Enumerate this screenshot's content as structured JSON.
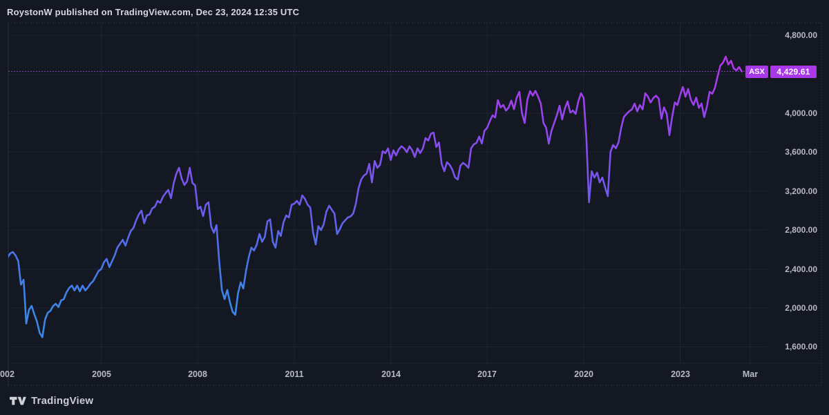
{
  "header": {
    "text": "RoystonW published on TradingView.com, Dec 23, 2024 12:35 UTC"
  },
  "footer": {
    "brand": "TradingView",
    "logo_icon": "tradingview-logo"
  },
  "price_label": {
    "symbol": "ASX",
    "value": "4,429.61",
    "numeric": 4429.61,
    "bg_color": "#a838e8",
    "text_color": "#ffffff"
  },
  "price_scale": {
    "labels": [
      "4,800.00",
      "4,000.00",
      "3,600.00",
      "3,200.00",
      "2,800.00",
      "2,400.00",
      "2,000.00",
      "1,600.00"
    ],
    "values": [
      4800,
      4000,
      3600,
      3200,
      2800,
      2400,
      2000,
      1600
    ]
  },
  "time_scale": {
    "ticks": [
      {
        "label": "2002",
        "year": 2002
      },
      {
        "label": "2005",
        "year": 2005
      },
      {
        "label": "2008",
        "year": 2008
      },
      {
        "label": "2011",
        "year": 2011
      },
      {
        "label": "2014",
        "year": 2014
      },
      {
        "label": "2017",
        "year": 2017
      },
      {
        "label": "2020",
        "year": 2020
      },
      {
        "label": "2023",
        "year": 2023
      },
      {
        "label": "Mar",
        "year": 2025.17
      }
    ]
  },
  "colors": {
    "background": "#141823",
    "grid": "#1f2431",
    "frame_dash": "#2b303c",
    "axis_text": "#b6bac3",
    "header_text": "#d5d8de",
    "price_line_dotted": "#9a4ce0",
    "label_bg": "#a838e8",
    "line_gradient_top": "#c22de9",
    "line_gradient_mid": "#6b5cea",
    "line_gradient_bottom": "#3b87e8"
  },
  "chart_data": {
    "type": "line",
    "symbol": "ASX",
    "frequency": "monthly",
    "x_start": "2002-01",
    "x_end": "2024-12",
    "last_value": 4429.61,
    "ylim": [
      1412,
      4920
    ],
    "y_grid_values": [
      4800,
      4400,
      4000,
      3600,
      3200,
      2800,
      2400,
      2000,
      1600
    ],
    "x_tick_years": [
      2002,
      2005,
      2008,
      2011,
      2014,
      2017,
      2020,
      2023,
      2025.17
    ],
    "price_line_value": 4429.61,
    "values": [
      2510,
      2518,
      2560,
      2575,
      2540,
      2482,
      2240,
      2290,
      1840,
      1980,
      2021,
      1935,
      1860,
      1745,
      1700,
      1880,
      1951,
      1970,
      2020,
      2043,
      2010,
      2078,
      2090,
      2160,
      2206,
      2230,
      2180,
      2230,
      2170,
      2230,
      2180,
      2210,
      2250,
      2277,
      2330,
      2380,
      2400,
      2470,
      2504,
      2419,
      2480,
      2540,
      2620,
      2660,
      2700,
      2640,
      2720,
      2790,
      2823,
      2900,
      2960,
      3000,
      2870,
      2951,
      2960,
      3022,
      3040,
      3100,
      3080,
      3142,
      3180,
      3213,
      3128,
      3280,
      3380,
      3440,
      3330,
      3263,
      3300,
      3440,
      3284,
      3260,
      3015,
      3040,
      2944,
      3060,
      3085,
      2837,
      2773,
      2850,
      2480,
      2182,
      2090,
      2185,
      2060,
      1960,
      1930,
      2150,
      2263,
      2200,
      2380,
      2520,
      2620,
      2590,
      2650,
      2760,
      2680,
      2730,
      2890,
      2910,
      2680,
      2620,
      2790,
      2740,
      2880,
      2950,
      2930,
      3060,
      3071,
      3100,
      3060,
      3156,
      3120,
      3060,
      3030,
      2780,
      2653,
      2840,
      2800,
      2860,
      2990,
      3050,
      3010,
      2970,
      2759,
      2810,
      2870,
      2900,
      2930,
      2940,
      2970,
      3070,
      3230,
      3319,
      3360,
      3380,
      3480,
      3290,
      3510,
      3440,
      3470,
      3610,
      3590,
      3640,
      3520,
      3620,
      3567,
      3630,
      3660,
      3640,
      3600,
      3660,
      3620,
      3550,
      3640,
      3590,
      3640,
      3745,
      3720,
      3790,
      3801,
      3653,
      3700,
      3480,
      3404,
      3497,
      3470,
      3420,
      3341,
      3319,
      3460,
      3490,
      3470,
      3440,
      3640,
      3680,
      3696,
      3760,
      3689,
      3820,
      3851,
      3920,
      3979,
      3957,
      4135,
      4060,
      4085,
      4028,
      4060,
      4130,
      4042,
      4160,
      4220,
      4000,
      3900,
      4140,
      4227,
      4180,
      4230,
      4170,
      4099,
      3900,
      3850,
      3688,
      3820,
      3900,
      3980,
      4078,
      3936,
      4050,
      4121,
      4007,
      4028,
      3993,
      4120,
      4206,
      4156,
      3760,
      3086,
      3404,
      3340,
      3390,
      3290,
      3340,
      3240,
      3149,
      3603,
      3674,
      3640,
      3700,
      3850,
      3960,
      3993,
      4020,
      4040,
      4099,
      4020,
      4085,
      4040,
      4206,
      4170,
      4110,
      4156,
      4180,
      4150,
      3943,
      4060,
      3995,
      3775,
      3960,
      4110,
      4085,
      4184,
      4270,
      4170,
      4250,
      4140,
      4085,
      4160,
      4055,
      4100,
      3960,
      4070,
      4220,
      4200,
      4262,
      4380,
      4489,
      4520,
      4581,
      4500,
      4539,
      4460,
      4440,
      4475,
      4429.61
    ]
  }
}
